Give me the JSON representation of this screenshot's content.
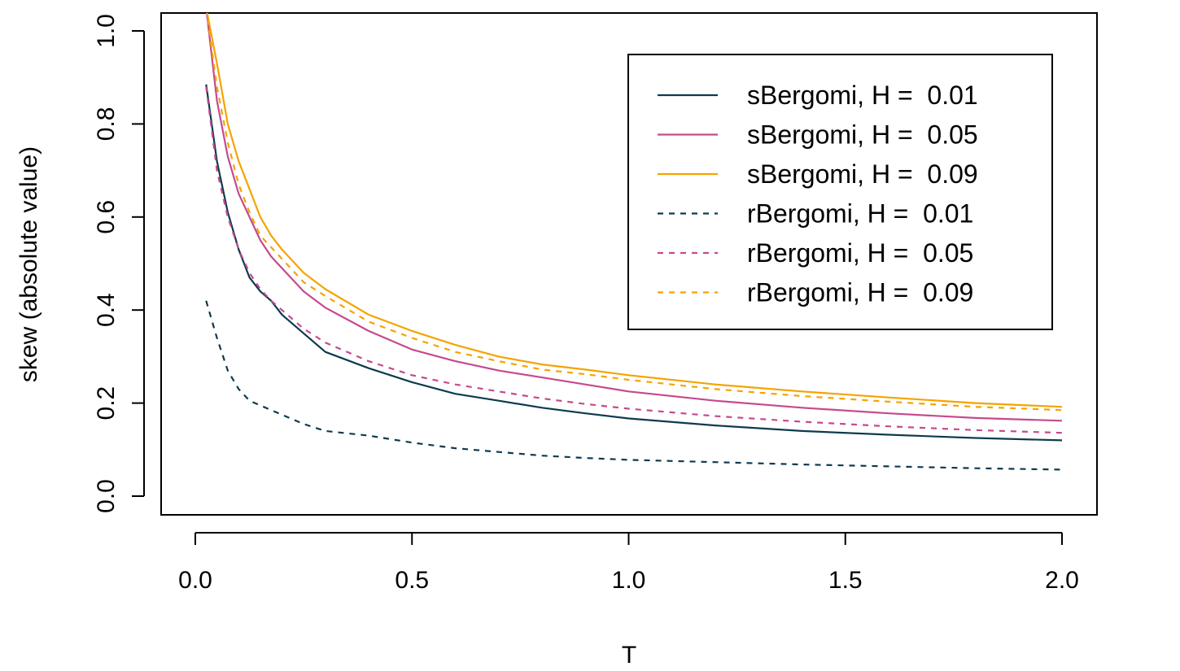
{
  "chart_data": {
    "type": "line",
    "title": "",
    "xlabel": "T",
    "ylabel": "skew (absolute value)",
    "xlim": [
      0,
      2.0
    ],
    "ylim": [
      0,
      1.0
    ],
    "x_ticks": [
      "0.0",
      "0.5",
      "1.0",
      "1.5",
      "2.0"
    ],
    "x_tick_values": [
      0,
      0.5,
      1.0,
      1.5,
      2.0
    ],
    "y_ticks": [
      "0.0",
      "0.2",
      "0.4",
      "0.6",
      "0.8",
      "1.0"
    ],
    "y_tick_values": [
      0,
      0.2,
      0.4,
      0.6,
      0.8,
      1.0
    ],
    "grid": false,
    "legend_position": "top-right",
    "series": [
      {
        "name": "sBergomi, H =  0.01",
        "style": "solid",
        "color": "#0d3b4f",
        "x": [
          0.025,
          0.05,
          0.075,
          0.1,
          0.125,
          0.15,
          0.175,
          0.2,
          0.25,
          0.3,
          0.4,
          0.5,
          0.6,
          0.7,
          0.8,
          0.9,
          1.0,
          1.2,
          1.4,
          1.6,
          1.8,
          2.0
        ],
        "y": [
          0.885,
          0.72,
          0.61,
          0.53,
          0.47,
          0.44,
          0.42,
          0.39,
          0.35,
          0.31,
          0.275,
          0.245,
          0.22,
          0.205,
          0.19,
          0.178,
          0.167,
          0.152,
          0.14,
          0.132,
          0.125,
          0.12
        ]
      },
      {
        "name": "sBergomi, H =  0.05",
        "style": "solid",
        "color": "#c54a8e",
        "x": [
          0.025,
          0.05,
          0.075,
          0.1,
          0.125,
          0.15,
          0.175,
          0.2,
          0.25,
          0.3,
          0.4,
          0.5,
          0.6,
          0.7,
          0.8,
          0.9,
          1.0,
          1.2,
          1.4,
          1.6,
          1.8,
          2.0
        ],
        "y": [
          1.05,
          0.85,
          0.73,
          0.65,
          0.6,
          0.55,
          0.515,
          0.49,
          0.44,
          0.405,
          0.355,
          0.315,
          0.29,
          0.27,
          0.255,
          0.24,
          0.225,
          0.205,
          0.19,
          0.178,
          0.168,
          0.162
        ]
      },
      {
        "name": "sBergomi, H =  0.09",
        "style": "solid",
        "color": "#f5a300",
        "x": [
          0.025,
          0.05,
          0.075,
          0.1,
          0.125,
          0.15,
          0.175,
          0.2,
          0.25,
          0.3,
          0.4,
          0.5,
          0.6,
          0.7,
          0.8,
          0.9,
          1.0,
          1.2,
          1.4,
          1.6,
          1.8,
          2.0
        ],
        "y": [
          1.05,
          0.93,
          0.8,
          0.72,
          0.66,
          0.6,
          0.56,
          0.53,
          0.48,
          0.445,
          0.39,
          0.355,
          0.325,
          0.3,
          0.283,
          0.272,
          0.26,
          0.24,
          0.225,
          0.212,
          0.2,
          0.192
        ]
      },
      {
        "name": "rBergomi, H =  0.01",
        "style": "dashed",
        "color": "#0d3b4f",
        "x": [
          0.025,
          0.05,
          0.075,
          0.1,
          0.125,
          0.15,
          0.175,
          0.2,
          0.25,
          0.3,
          0.4,
          0.5,
          0.6,
          0.7,
          0.8,
          0.9,
          1.0,
          1.2,
          1.4,
          1.6,
          1.8,
          2.0
        ],
        "y": [
          0.42,
          0.34,
          0.27,
          0.23,
          0.205,
          0.195,
          0.185,
          0.175,
          0.155,
          0.14,
          0.13,
          0.115,
          0.103,
          0.095,
          0.087,
          0.082,
          0.078,
          0.073,
          0.068,
          0.064,
          0.06,
          0.057
        ]
      },
      {
        "name": "rBergomi, H =  0.05",
        "style": "dashed",
        "color": "#c54a8e",
        "x": [
          0.025,
          0.05,
          0.075,
          0.1,
          0.125,
          0.15,
          0.175,
          0.2,
          0.25,
          0.3,
          0.4,
          0.5,
          0.6,
          0.7,
          0.8,
          0.9,
          1.0,
          1.2,
          1.4,
          1.6,
          1.8,
          2.0
        ],
        "y": [
          0.88,
          0.7,
          0.6,
          0.53,
          0.48,
          0.445,
          0.42,
          0.4,
          0.36,
          0.33,
          0.29,
          0.26,
          0.24,
          0.225,
          0.21,
          0.198,
          0.188,
          0.172,
          0.16,
          0.15,
          0.142,
          0.136
        ]
      },
      {
        "name": "rBergomi, H =  0.09",
        "style": "dashed",
        "color": "#f5a300",
        "x": [
          0.025,
          0.05,
          0.075,
          0.1,
          0.125,
          0.15,
          0.175,
          0.2,
          0.25,
          0.3,
          0.4,
          0.5,
          0.6,
          0.7,
          0.8,
          0.9,
          1.0,
          1.2,
          1.4,
          1.6,
          1.8,
          2.0
        ],
        "y": [
          1.05,
          0.88,
          0.76,
          0.67,
          0.61,
          0.56,
          0.535,
          0.51,
          0.46,
          0.43,
          0.375,
          0.34,
          0.31,
          0.29,
          0.272,
          0.262,
          0.25,
          0.23,
          0.215,
          0.203,
          0.192,
          0.185
        ]
      }
    ]
  }
}
